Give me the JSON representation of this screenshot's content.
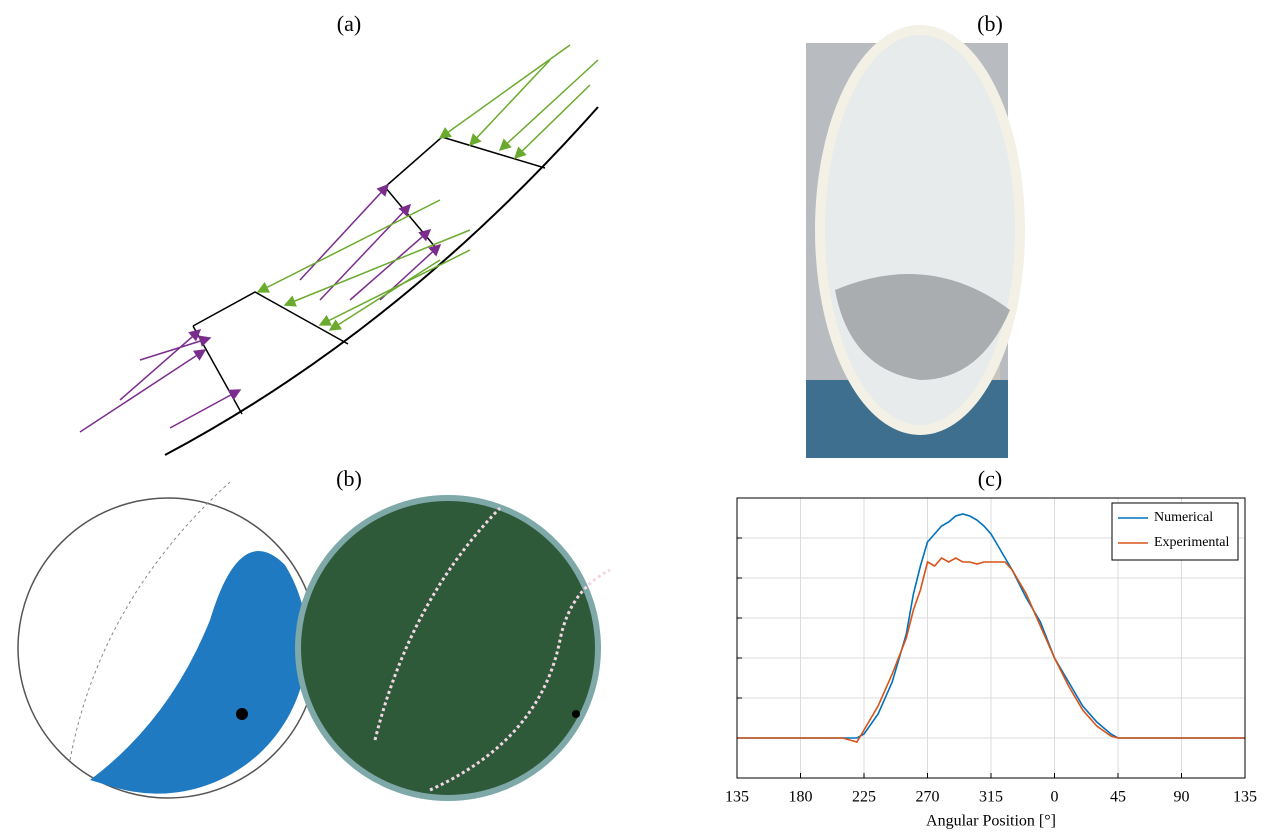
{
  "panels": {
    "labels": [
      "(a)",
      "(b)",
      "(b)",
      "(c)"
    ]
  },
  "chart_data": {
    "type": "line",
    "x_label": "Angular Position [°]",
    "x": [
      135,
      180,
      210,
      220,
      225,
      235,
      245,
      255,
      260,
      265,
      270,
      275,
      280,
      285,
      290,
      295,
      300,
      305,
      310,
      315,
      320,
      325,
      330,
      340,
      350,
      360,
      370,
      380,
      390,
      400,
      405,
      450,
      495
    ],
    "series": [
      {
        "name": "Numerical",
        "color": "#0072bd",
        "values": [
          1.0,
          1.0,
          1.0,
          1.0,
          1.1,
          1.6,
          2.4,
          3.6,
          4.6,
          5.3,
          5.9,
          6.1,
          6.3,
          6.4,
          6.55,
          6.6,
          6.55,
          6.45,
          6.3,
          6.1,
          5.8,
          5.5,
          5.2,
          4.5,
          3.9,
          3.0,
          2.4,
          1.8,
          1.4,
          1.1,
          1.0,
          1.0,
          1.0
        ]
      },
      {
        "name": "Experimental",
        "color": "#d95319",
        "values": [
          1.0,
          1.0,
          1.0,
          0.9,
          1.2,
          1.8,
          2.6,
          3.5,
          4.2,
          4.7,
          5.4,
          5.3,
          5.5,
          5.4,
          5.5,
          5.4,
          5.4,
          5.35,
          5.4,
          5.4,
          5.4,
          5.4,
          5.2,
          4.6,
          3.8,
          3.0,
          2.3,
          1.7,
          1.3,
          1.05,
          1.0,
          1.0,
          1.0
        ]
      }
    ],
    "xlim": [
      135,
      495
    ],
    "xticks": [
      135,
      180,
      225,
      270,
      315,
      {
        "value": 360,
        "label": "0"
      },
      {
        "value": 405,
        "label": "45"
      },
      {
        "value": 450,
        "label": "90"
      },
      {
        "value": 495,
        "label": "135"
      }
    ],
    "ylim": [
      0,
      7
    ],
    "yticks": [
      1,
      2,
      3,
      4,
      5,
      6
    ],
    "grid": true,
    "legend": "upper-right"
  }
}
